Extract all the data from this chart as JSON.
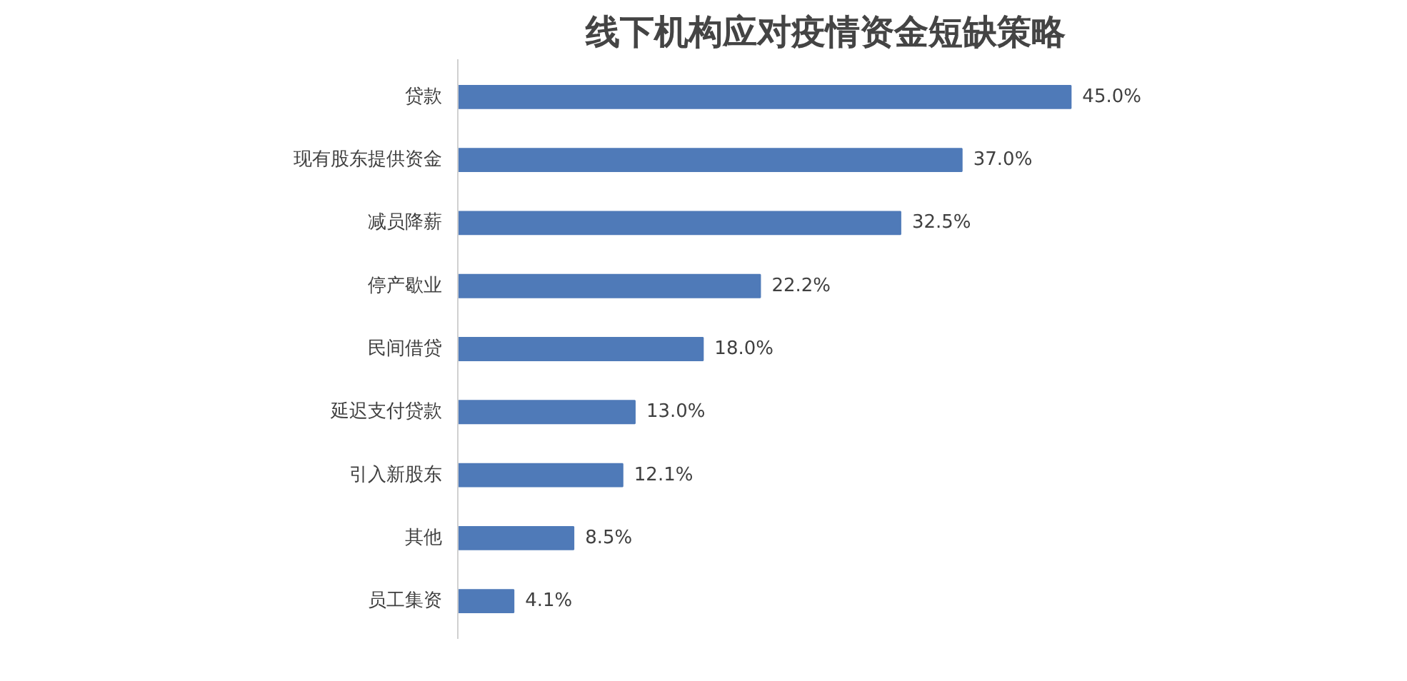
{
  "chart_data": {
    "type": "bar",
    "orientation": "horizontal",
    "title": "线下机构应对疫情资金短缺策略",
    "categories": [
      "贷款",
      "现有股东提供资金",
      "减员降薪",
      "停产歇业",
      "民间借贷",
      "延迟支付贷款",
      "引入新股东",
      "其他",
      "员工集资"
    ],
    "values": [
      45.0,
      37.0,
      32.5,
      22.2,
      18.0,
      13.0,
      12.1,
      8.5,
      4.1
    ],
    "value_labels": [
      "45.0%",
      "37.0%",
      "32.5%",
      "22.2%",
      "18.0%",
      "13.0%",
      "12.1%",
      "8.5%",
      "4.1%"
    ],
    "color": "#4f7ab8",
    "grid": false
  }
}
